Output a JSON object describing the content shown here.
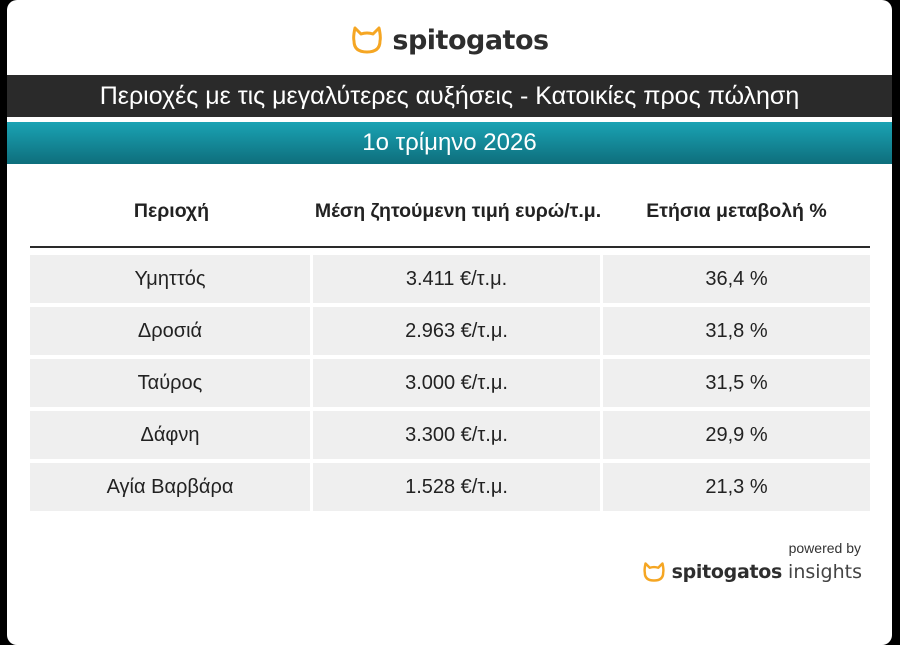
{
  "brand": {
    "name": "spitogatos",
    "accent_color": "#f5a623",
    "icon": "cat-icon"
  },
  "header": {
    "title": "Περιοχές με τις μεγαλύτερες αυξήσεις - Κατοικίες προς πώληση",
    "subtitle": "1ο τρίμηνο 2026"
  },
  "table": {
    "columns": [
      "Περιοχή",
      "Μέση ζητούμενη τιμή ευρώ/τ.μ.",
      "Ετήσια μεταβολή %"
    ],
    "rows": [
      [
        "Υμηττός",
        "3.411 €/τ.μ.",
        "36,4 %"
      ],
      [
        "Δροσιά",
        "2.963 €/τ.μ.",
        "31,8 %"
      ],
      [
        "Ταύρος",
        "3.000 €/τ.μ.",
        "31,5 %"
      ],
      [
        "Δάφνη",
        "3.300 €/τ.μ.",
        "29,9 %"
      ],
      [
        "Αγία Βαρβάρα",
        "1.528 €/τ.μ.",
        "21,3 %"
      ]
    ]
  },
  "footer": {
    "powered_by": "powered by",
    "brand": "spitogatos",
    "suffix": "insights"
  }
}
